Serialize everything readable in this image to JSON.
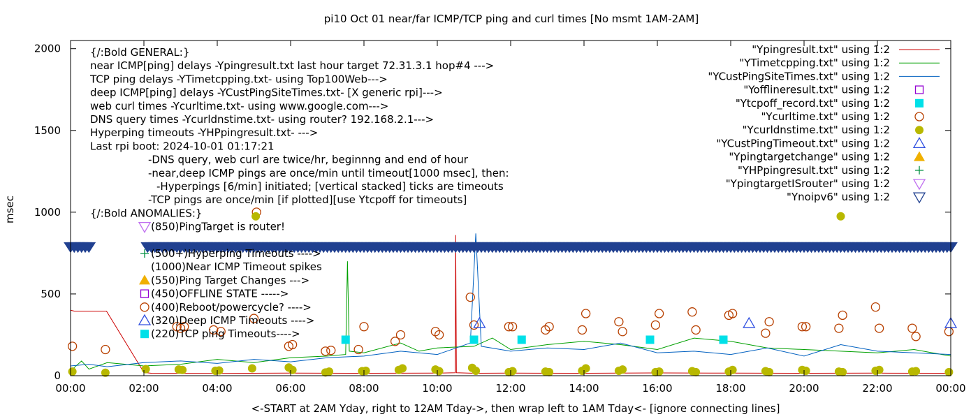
{
  "chart_data": {
    "type": "line",
    "title": "pi10 Oct 01  near/far ICMP/TCP ping and curl times [No msmt 1AM-2AM]",
    "xlabel": "<-START at 2AM Yday, right to 12AM Tday->, then wrap left to 1AM Tday<- [ignore connecting lines]",
    "ylabel": "msec",
    "xlim": [
      0,
      24
    ],
    "ylim": [
      0,
      2050
    ],
    "xticks": [
      {
        "value": 0,
        "label": "00:00"
      },
      {
        "value": 2,
        "label": "02:00"
      },
      {
        "value": 4,
        "label": "04:00"
      },
      {
        "value": 6,
        "label": "06:00"
      },
      {
        "value": 8,
        "label": "08:00"
      },
      {
        "value": 10,
        "label": "10:00"
      },
      {
        "value": 12,
        "label": "12:00"
      },
      {
        "value": 14,
        "label": "14:00"
      },
      {
        "value": 16,
        "label": "16:00"
      },
      {
        "value": 18,
        "label": "18:00"
      },
      {
        "value": 20,
        "label": "20:00"
      },
      {
        "value": 22,
        "label": "22:00"
      },
      {
        "value": 24,
        "label": "00:00"
      }
    ],
    "yticks": [
      {
        "value": 0,
        "label": "0"
      },
      {
        "value": 500,
        "label": "500"
      },
      {
        "value": 1000,
        "label": "1000"
      },
      {
        "value": 1500,
        "label": "1500"
      },
      {
        "value": 2000,
        "label": "2000"
      }
    ],
    "grid": false,
    "legend_position": "top-right",
    "annotations": [
      "{/:Bold GENERAL:}",
      "near ICMP[ping] delays -Ypingresult.txt last hour target 72.31.3.1 hop#4 --->",
      "TCP ping delays -YTimetcpping.txt- using Top100Web--->",
      "deep ICMP[ping] delays -YCustPingSiteTimes.txt- [X generic rpi]--->",
      "web curl times -Ycurltime.txt- using www.google.com--->",
      "DNS query times -Ycurldnstime.txt- using router? 192.168.2.1--->",
      "Hyperping timeouts -YHPpingresult.txt- --->",
      "Last rpi boot: 2024-10-01 01:17:21",
      "-DNS query, web curl are twice/hr, beginnng and end of hour",
      "-near,deep ICMP pings are once/min until timeout[1000 msec], then:",
      "-Hyperpings [6/min] initiated; [vertical stacked] ticks are timeouts",
      "-TCP pings are once/min [if plotted][use Ytcpoff for timeouts]",
      "{/:Bold ANOMALIES:}",
      "(850)PingTarget is router!",
      "(500+)Hyperping Timeouts ---->",
      "(1000)Near ICMP Timeout spikes",
      "(550)Ping Target Changes --->",
      "(450)OFFLINE STATE ----->",
      "(400)Reboot/powercycle? ---->",
      "(320)Deep ICMP Timeouts ---->",
      "(220)TCP ping Timeouts---->"
    ],
    "anomaly_markers": [
      {
        "symbol": "triangle-down-violet",
        "y": 850
      },
      {
        "symbol": "plus-green",
        "y": 500
      },
      {
        "symbol": "triangle-up-orange",
        "y": 550
      },
      {
        "symbol": "square-open-purple",
        "y": 450
      },
      {
        "symbol": "circle-open-brown",
        "y": 400
      },
      {
        "symbol": "triangle-up-open-blue",
        "y": 320
      },
      {
        "symbol": "square-cyan",
        "y": 220
      }
    ],
    "series": [
      {
        "name": "\"Ypingresult.txt\" using 1:2",
        "kind": "line",
        "color": "#cc0000",
        "x": [
          0,
          0.1,
          0.5,
          0.98,
          2,
          2.2,
          4,
          6,
          8,
          10,
          10.49,
          10.5,
          10.52,
          11,
          12,
          14,
          16,
          18,
          20,
          22,
          24
        ],
        "y": [
          400,
          395,
          395,
          395,
          20,
          15,
          14,
          16,
          15,
          16,
          18,
          860,
          18,
          15,
          16,
          15,
          17,
          16,
          15,
          16,
          15
        ]
      },
      {
        "name": "\"YTimetcpping.txt\" using 1:2",
        "kind": "line",
        "color": "#00a000",
        "x": [
          0,
          0.3,
          0.5,
          1,
          2,
          3,
          4,
          5,
          6,
          7,
          7.5,
          7.55,
          7.6,
          8,
          9,
          9.5,
          10,
          11,
          11.5,
          12,
          13,
          14,
          15,
          16,
          17,
          18,
          19,
          20,
          21,
          22,
          23,
          24
        ],
        "y": [
          30,
          90,
          40,
          80,
          60,
          70,
          100,
          80,
          110,
          120,
          130,
          700,
          150,
          140,
          200,
          150,
          170,
          180,
          230,
          160,
          190,
          210,
          190,
          160,
          230,
          210,
          170,
          160,
          150,
          140,
          160,
          120
        ]
      },
      {
        "name": "\"YCustPingSiteTimes.txt\" using 1:2",
        "kind": "line",
        "color": "#0060c0",
        "x": [
          0,
          0.5,
          1,
          2,
          3,
          4,
          5,
          6,
          7,
          8,
          9,
          10,
          10.9,
          11.05,
          11.2,
          12,
          13,
          14,
          15,
          16,
          17,
          18,
          19,
          20,
          21,
          22,
          23,
          24
        ],
        "y": [
          60,
          70,
          55,
          80,
          90,
          75,
          100,
          85,
          110,
          120,
          150,
          130,
          200,
          870,
          180,
          150,
          170,
          160,
          200,
          140,
          150,
          130,
          170,
          120,
          190,
          150,
          140,
          130
        ]
      },
      {
        "name": "\"Yofflineresult.txt\" using 1:2",
        "kind": "square-open",
        "color": "#9400d3",
        "x": [],
        "y": []
      },
      {
        "name": "\"Ytcpoff_record.txt\" using 1:2",
        "kind": "square",
        "color": "#00e0e8",
        "x": [
          7.5,
          11.0,
          12.3,
          15.8,
          17.8
        ],
        "y": [
          220,
          220,
          220,
          220,
          220
        ]
      },
      {
        "name": "\"Ycurltime.txt\" using 1:2",
        "kind": "circle-open",
        "color": "#b84000",
        "x": [
          0.05,
          0.95,
          2.9,
          3.0,
          3.1,
          3.9,
          4.1,
          5.0,
          5.07,
          5.95,
          6.05,
          6.95,
          7.1,
          7.85,
          8.0,
          8.85,
          9.0,
          9.95,
          10.05,
          10.9,
          11.0,
          11.95,
          12.05,
          12.95,
          13.05,
          13.95,
          14.05,
          14.95,
          15.05,
          15.95,
          16.05,
          16.95,
          17.05,
          17.95,
          18.05,
          18.95,
          19.05,
          19.95,
          20.05,
          20.95,
          21.05,
          21.95,
          22.05,
          22.95,
          23.05,
          23.95
        ],
        "y": [
          180,
          160,
          300,
          290,
          300,
          280,
          270,
          350,
          1000,
          180,
          190,
          150,
          155,
          160,
          300,
          210,
          250,
          270,
          250,
          480,
          310,
          300,
          300,
          280,
          300,
          280,
          380,
          330,
          270,
          310,
          380,
          390,
          280,
          370,
          380,
          260,
          330,
          300,
          300,
          290,
          370,
          420,
          290,
          290,
          240,
          270
        ]
      },
      {
        "name": "\"Ycurldnstime.txt\" using 1:2",
        "kind": "circle",
        "color": "#b8b800",
        "x": [
          0.05,
          0.95,
          2.05,
          2.95,
          3.05,
          3.95,
          4.05,
          4.95,
          5.05,
          5.95,
          6.05,
          6.95,
          7.05,
          7.95,
          8.05,
          8.95,
          9.05,
          9.95,
          10.05,
          10.95,
          11.05,
          11.95,
          12.05,
          12.95,
          13.05,
          13.95,
          14.05,
          14.95,
          15.05,
          15.95,
          16.05,
          16.95,
          17.05,
          17.95,
          18.05,
          18.95,
          19.05,
          19.95,
          20.05,
          20.95,
          21.0,
          21.05,
          21.95,
          22.05,
          22.95,
          23.05,
          23.95
        ],
        "y": [
          25,
          18,
          40,
          38,
          35,
          30,
          32,
          45,
          975,
          50,
          35,
          20,
          25,
          28,
          30,
          35,
          45,
          38,
          28,
          48,
          30,
          22,
          28,
          25,
          22,
          30,
          45,
          30,
          38,
          22,
          25,
          28,
          22,
          25,
          35,
          28,
          22,
          35,
          30,
          25,
          975,
          22,
          30,
          35,
          25,
          28,
          22
        ]
      },
      {
        "name": "\"YCustPingTimeout.txt\" using 1:2",
        "kind": "triangle-up-open",
        "color": "#3050e0",
        "x": [
          11.15,
          18.5,
          24.0
        ],
        "y": [
          320,
          320,
          320
        ]
      },
      {
        "name": "\"Ypingtargetchange\" using 1:2",
        "kind": "triangle-up",
        "color": "#f0b000",
        "x": [],
        "y": []
      },
      {
        "name": "\"YHPpingresult.txt\" using 1:2",
        "kind": "plus",
        "color": "#009040",
        "x": [],
        "y": []
      },
      {
        "name": "\"YpingtargetISrouter\" using 1:2",
        "kind": "triangle-down-open",
        "color": "#c070f0",
        "x": [],
        "y": []
      },
      {
        "name": "\"Ynoipv6\" using 1:2",
        "kind": "triangle-down-open",
        "color": "#204090",
        "x": [
          0,
          0.1,
          0.2,
          0.3,
          0.4,
          0.5,
          2.1,
          2.2,
          2.3,
          2.4,
          2.5,
          2.6,
          2.7,
          2.8,
          2.9,
          3.0,
          3.1,
          3.2,
          3.3,
          3.4,
          3.5,
          3.6,
          3.7,
          3.8,
          3.9,
          4.0,
          4.1,
          4.2,
          4.3,
          4.4,
          4.5,
          4.6,
          4.7,
          4.8,
          4.9,
          5.0,
          5.1,
          5.2,
          5.3,
          5.4,
          5.5,
          5.6,
          5.7,
          5.8,
          5.9,
          6.0,
          6.1,
          6.2,
          6.3,
          6.4,
          6.5,
          6.6,
          6.7,
          6.8,
          6.9,
          7.0,
          7.1,
          7.2,
          7.3,
          7.4,
          7.5,
          7.6,
          7.7,
          7.8,
          7.9,
          8.0,
          8.1,
          8.2,
          8.3,
          8.4,
          8.5,
          8.6,
          8.7,
          8.8,
          8.9,
          9.0,
          9.1,
          9.2,
          9.3,
          9.4,
          9.5,
          9.6,
          9.7,
          9.8,
          9.9,
          10.0,
          10.1,
          10.2,
          10.3,
          10.4,
          10.5,
          10.6,
          10.7,
          10.8,
          10.9,
          11.0,
          11.1,
          11.2,
          11.3,
          11.4,
          11.5,
          11.6,
          11.7,
          11.8,
          11.9,
          12.0,
          12.1,
          12.2,
          12.3,
          12.4,
          12.5,
          12.6,
          12.7,
          12.8,
          12.9,
          13.0,
          13.1,
          13.2,
          13.3,
          13.4,
          13.5,
          13.6,
          13.7,
          13.8,
          13.9,
          14.0,
          14.1,
          14.2,
          14.3,
          14.4,
          14.5,
          14.6,
          14.7,
          14.8,
          14.9,
          15.0,
          15.1,
          15.2,
          15.3,
          15.4,
          15.5,
          15.6,
          15.7,
          15.8,
          15.9,
          16.0,
          16.1,
          16.2,
          16.3,
          16.4,
          16.5,
          16.6,
          16.7,
          16.8,
          16.9,
          17.0,
          17.1,
          17.2,
          17.3,
          17.4,
          17.5,
          17.6,
          17.7,
          17.8,
          17.9,
          18.0,
          18.1,
          18.2,
          18.3,
          18.4,
          18.5,
          18.6,
          18.7,
          18.8,
          18.9,
          19.0,
          19.1,
          19.2,
          19.3,
          19.4,
          19.5,
          19.6,
          19.7,
          19.8,
          19.9,
          20.0,
          20.1,
          20.2,
          20.3,
          20.4,
          20.5,
          20.6,
          20.7,
          20.8,
          20.9,
          21.0,
          21.1,
          21.2,
          21.3,
          21.4,
          21.5,
          21.6,
          21.7,
          21.8,
          21.9,
          22.0,
          22.1,
          22.2,
          22.3,
          22.4,
          22.5,
          22.6,
          22.7,
          22.8,
          22.9,
          23.0,
          23.1,
          23.2,
          23.3,
          23.4,
          23.5,
          23.6,
          23.7,
          23.8,
          23.9,
          24.0
        ],
        "y": [
          780,
          780,
          780,
          780,
          780,
          780,
          780,
          780,
          780,
          780,
          780,
          780,
          780,
          780,
          780,
          780,
          780,
          780,
          780,
          780,
          780,
          780,
          780,
          780,
          780,
          780,
          780,
          780,
          780,
          780,
          780,
          780,
          780,
          780,
          780,
          780,
          780,
          780,
          780,
          780,
          780,
          780,
          780,
          780,
          780,
          780,
          780,
          780,
          780,
          780,
          780,
          780,
          780,
          780,
          780,
          780,
          780,
          780,
          780,
          780,
          780,
          780,
          780,
          780,
          780,
          780,
          780,
          780,
          780,
          780,
          780,
          780,
          780,
          780,
          780,
          780,
          780,
          780,
          780,
          780,
          780,
          780,
          780,
          780,
          780,
          780,
          780,
          780,
          780,
          780,
          780,
          780,
          780,
          780,
          780,
          780,
          780,
          780,
          780,
          780,
          780,
          780,
          780,
          780,
          780,
          780,
          780,
          780,
          780,
          780,
          780,
          780,
          780,
          780,
          780,
          780,
          780,
          780,
          780,
          780,
          780,
          780,
          780,
          780,
          780,
          780,
          780,
          780,
          780,
          780,
          780,
          780,
          780,
          780,
          780,
          780,
          780,
          780,
          780,
          780,
          780,
          780,
          780,
          780,
          780,
          780,
          780,
          780,
          780,
          780,
          780,
          780,
          780,
          780,
          780,
          780,
          780,
          780,
          780,
          780,
          780,
          780,
          780,
          780,
          780,
          780,
          780,
          780,
          780,
          780,
          780,
          780,
          780,
          780,
          780,
          780,
          780,
          780,
          780,
          780,
          780,
          780,
          780,
          780,
          780,
          780,
          780,
          780,
          780,
          780,
          780,
          780,
          780,
          780,
          780,
          780,
          780,
          780,
          780,
          780,
          780,
          780,
          780,
          780,
          780,
          780,
          780,
          780,
          780,
          780,
          780,
          780,
          780,
          780,
          780,
          780,
          780,
          780,
          780,
          780,
          780,
          780,
          780,
          780,
          780,
          780
        ]
      }
    ]
  }
}
